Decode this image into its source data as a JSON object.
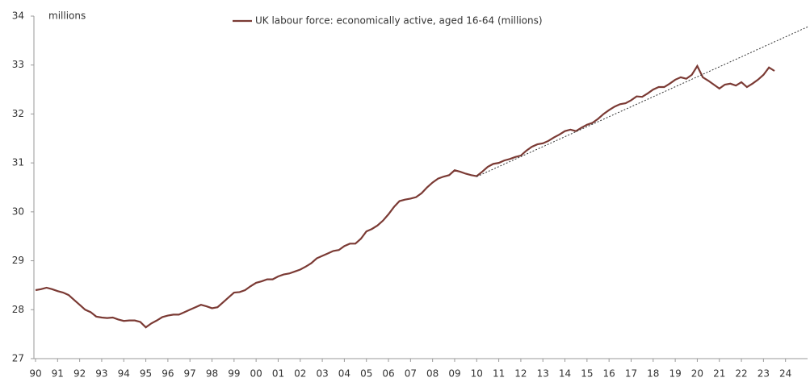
{
  "chart_data": {
    "type": "line",
    "y_label": "millions",
    "xlim": [
      1990,
      2025
    ],
    "ylim": [
      27,
      34
    ],
    "yticks": [
      27,
      28,
      29,
      30,
      31,
      32,
      33,
      34
    ],
    "xticks": [
      {
        "value": 1990,
        "label": "90"
      },
      {
        "value": 1991,
        "label": "91"
      },
      {
        "value": 1992,
        "label": "92"
      },
      {
        "value": 1993,
        "label": "93"
      },
      {
        "value": 1994,
        "label": "94"
      },
      {
        "value": 1995,
        "label": "95"
      },
      {
        "value": 1996,
        "label": "96"
      },
      {
        "value": 1997,
        "label": "97"
      },
      {
        "value": 1998,
        "label": "98"
      },
      {
        "value": 1999,
        "label": "99"
      },
      {
        "value": 2000,
        "label": "00"
      },
      {
        "value": 2001,
        "label": "01"
      },
      {
        "value": 2002,
        "label": "02"
      },
      {
        "value": 2003,
        "label": "03"
      },
      {
        "value": 2004,
        "label": "04"
      },
      {
        "value": 2005,
        "label": "05"
      },
      {
        "value": 2006,
        "label": "06"
      },
      {
        "value": 2007,
        "label": "07"
      },
      {
        "value": 2008,
        "label": "08"
      },
      {
        "value": 2009,
        "label": "09"
      },
      {
        "value": 2010,
        "label": "10"
      },
      {
        "value": 2011,
        "label": "11"
      },
      {
        "value": 2012,
        "label": "12"
      },
      {
        "value": 2013,
        "label": "13"
      },
      {
        "value": 2014,
        "label": "14"
      },
      {
        "value": 2015,
        "label": "15"
      },
      {
        "value": 2016,
        "label": "16"
      },
      {
        "value": 2017,
        "label": "17"
      },
      {
        "value": 2018,
        "label": "18"
      },
      {
        "value": 2019,
        "label": "19"
      },
      {
        "value": 2020,
        "label": "20"
      },
      {
        "value": 2021,
        "label": "21"
      },
      {
        "value": 2022,
        "label": "22"
      },
      {
        "value": 2023,
        "label": "23"
      },
      {
        "value": 2024,
        "label": "24"
      }
    ],
    "legend": "top",
    "series": [
      {
        "name": "UK labour force: economically active, aged 16-64 (millions)",
        "color": "#7b3a34",
        "style": "solid",
        "x": [
          1990,
          1990.25,
          1990.5,
          1990.75,
          1991,
          1991.25,
          1991.5,
          1991.75,
          1992,
          1992.25,
          1992.5,
          1992.75,
          1993,
          1993.25,
          1993.5,
          1993.75,
          1994,
          1994.25,
          1994.5,
          1994.75,
          1995,
          1995.25,
          1995.5,
          1995.75,
          1996,
          1996.25,
          1996.5,
          1996.75,
          1997,
          1997.25,
          1997.5,
          1997.75,
          1998,
          1998.25,
          1998.5,
          1998.75,
          1999,
          1999.25,
          1999.5,
          1999.75,
          2000,
          2000.25,
          2000.5,
          2000.75,
          2001,
          2001.25,
          2001.5,
          2001.75,
          2002,
          2002.25,
          2002.5,
          2002.75,
          2003,
          2003.25,
          2003.5,
          2003.75,
          2004,
          2004.25,
          2004.5,
          2004.75,
          2005,
          2005.25,
          2005.5,
          2005.75,
          2006,
          2006.25,
          2006.5,
          2006.75,
          2007,
          2007.25,
          2007.5,
          2007.75,
          2008,
          2008.25,
          2008.5,
          2008.75,
          2009,
          2009.25,
          2009.5,
          2009.75,
          2010,
          2010.25,
          2010.5,
          2010.75,
          2011,
          2011.25,
          2011.5,
          2011.75,
          2012,
          2012.25,
          2012.5,
          2012.75,
          2013,
          2013.25,
          2013.5,
          2013.75,
          2014,
          2014.25,
          2014.5,
          2014.75,
          2015,
          2015.25,
          2015.5,
          2015.75,
          2016,
          2016.25,
          2016.5,
          2016.75,
          2017,
          2017.25,
          2017.5,
          2017.75,
          2018,
          2018.25,
          2018.5,
          2018.75,
          2019,
          2019.25,
          2019.5,
          2019.75,
          2020,
          2020.25,
          2020.5,
          2020.75,
          2021,
          2021.25,
          2021.5,
          2021.75,
          2022,
          2022.25,
          2022.5,
          2022.75,
          2023,
          2023.25,
          2023.5
        ],
        "values": [
          28.4,
          28.42,
          28.45,
          28.42,
          28.38,
          28.35,
          28.3,
          28.2,
          28.1,
          28.0,
          27.95,
          27.86,
          27.84,
          27.83,
          27.84,
          27.8,
          27.77,
          27.78,
          27.78,
          27.75,
          27.64,
          27.72,
          27.78,
          27.85,
          27.88,
          27.9,
          27.9,
          27.95,
          28.0,
          28.05,
          28.1,
          28.07,
          28.03,
          28.05,
          28.15,
          28.25,
          28.35,
          28.36,
          28.4,
          28.48,
          28.55,
          28.58,
          28.62,
          28.62,
          28.68,
          28.72,
          28.74,
          28.78,
          28.82,
          28.88,
          28.95,
          29.05,
          29.1,
          29.15,
          29.2,
          29.22,
          29.3,
          29.35,
          29.35,
          29.45,
          29.6,
          29.65,
          29.72,
          29.82,
          29.95,
          30.1,
          30.22,
          30.25,
          30.27,
          30.3,
          30.38,
          30.5,
          30.6,
          30.68,
          30.72,
          30.75,
          30.85,
          30.82,
          30.78,
          30.75,
          30.73,
          30.82,
          30.92,
          30.98,
          31.0,
          31.05,
          31.08,
          31.12,
          31.15,
          31.25,
          31.33,
          31.38,
          31.4,
          31.45,
          31.52,
          31.58,
          31.65,
          31.68,
          31.65,
          31.72,
          31.78,
          31.82,
          31.9,
          32.0,
          32.08,
          32.15,
          32.2,
          32.22,
          32.28,
          32.36,
          32.35,
          32.42,
          32.5,
          32.55,
          32.55,
          32.62,
          32.7,
          32.75,
          32.72,
          32.8,
          32.98,
          32.75,
          32.68,
          32.6,
          32.52,
          32.6,
          32.62,
          32.58,
          32.65,
          32.55,
          32.62,
          32.7,
          32.8,
          32.95,
          32.88
        ]
      },
      {
        "color": "#333333",
        "style": "dotted",
        "x": [
          2010,
          2025
        ],
        "values": [
          30.72,
          33.78
        ]
      }
    ]
  }
}
